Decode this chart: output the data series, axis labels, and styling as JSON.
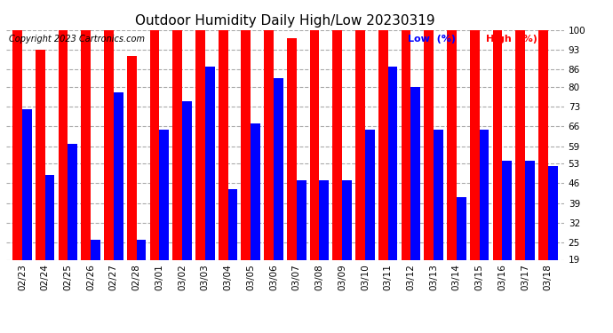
{
  "title": "Outdoor Humidity Daily High/Low 20230319",
  "copyright": "Copyright 2023 Cartronics.com",
  "legend_low": "Low  (%)",
  "legend_high": "High  (%)",
  "dates": [
    "02/23",
    "02/24",
    "02/25",
    "02/26",
    "02/27",
    "02/28",
    "03/01",
    "03/02",
    "03/03",
    "03/04",
    "03/05",
    "03/06",
    "03/07",
    "03/08",
    "03/09",
    "03/10",
    "03/11",
    "03/12",
    "03/13",
    "03/14",
    "03/15",
    "03/16",
    "03/17",
    "03/18"
  ],
  "high_values": [
    100,
    93,
    100,
    100,
    100,
    91,
    100,
    100,
    100,
    100,
    100,
    100,
    97,
    100,
    100,
    100,
    100,
    100,
    100,
    100,
    100,
    100,
    100,
    100
  ],
  "low_values": [
    72,
    49,
    60,
    26,
    78,
    26,
    65,
    75,
    87,
    44,
    67,
    83,
    47,
    47,
    47,
    65,
    87,
    80,
    65,
    41,
    65,
    54,
    54,
    52
  ],
  "high_color": "#ff0000",
  "low_color": "#0000ff",
  "bg_color": "#ffffff",
  "grid_color": "#aaaaaa",
  "yticks": [
    19,
    25,
    32,
    39,
    46,
    53,
    59,
    66,
    73,
    80,
    86,
    93,
    100
  ],
  "ymin": 19,
  "ymax": 100,
  "title_fontsize": 11,
  "copyright_fontsize": 7,
  "legend_fontsize": 8,
  "tick_fontsize": 7.5
}
